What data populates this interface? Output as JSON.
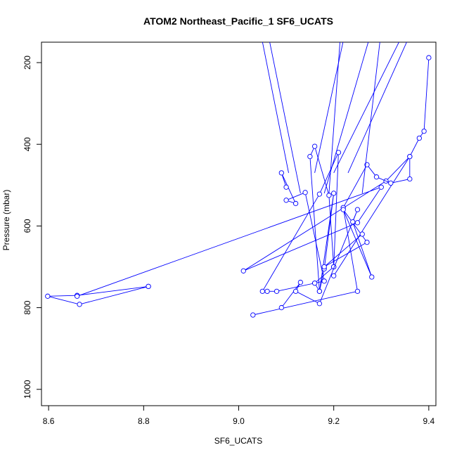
{
  "chart_data": {
    "type": "scatter",
    "title": "ATOM2 Northeast_Pacific_1 SF6_UCATS",
    "xlabel": "SF6_UCATS",
    "ylabel": "Pressure (mbar)",
    "xlim": [
      8.585,
      9.415
    ],
    "ylim": [
      1040,
      150
    ],
    "y_reversed": true,
    "x_ticks": [
      8.6,
      8.8,
      9.0,
      9.2,
      9.4
    ],
    "x_tick_labels": [
      "8.6",
      "8.8",
      "9.0",
      "9.2",
      "9.4"
    ],
    "y_ticks": [
      200,
      400,
      600,
      800,
      1000
    ],
    "y_tick_labels": [
      "200",
      "400",
      "600",
      "800",
      "1000"
    ],
    "grid": false,
    "legend": "none",
    "color": "#0000ff",
    "series": [
      {
        "x": [
          8.81,
          8.66,
          8.598,
          8.665,
          8.81
        ],
        "y": [
          748,
          770,
          772,
          792,
          748
        ]
      },
      {
        "x": [
          8.66,
          9.3,
          9.25,
          9.01,
          9.31,
          9.36,
          9.38,
          9.39,
          9.4
        ],
        "y": [
          772,
          505,
          592,
          710,
          490,
          430,
          385,
          368,
          188
        ]
      },
      {
        "x": [
          9.05,
          9.17,
          9.21,
          9.2,
          9.16,
          9.18,
          9.14,
          9.1,
          9.12,
          9.09,
          9.1
        ],
        "y": [
          760,
          522,
          420,
          700,
          740,
          735,
          518,
          537,
          545,
          470,
          505
        ]
      },
      {
        "x": [
          9.06,
          9.08,
          9.16,
          9.17,
          9.2,
          9.18,
          9.17,
          9.15,
          9.16,
          9.19,
          9.2
        ],
        "y": [
          760,
          760,
          740,
          760,
          520,
          705,
          760,
          430,
          405,
          525,
          700
        ]
      },
      {
        "x": [
          9.03,
          9.25,
          9.22,
          9.27,
          9.29,
          9.32,
          9.36,
          9.36,
          9.2
        ],
        "y": [
          818,
          760,
          555,
          450,
          480,
          495,
          485,
          430,
          722
        ]
      },
      {
        "x": [
          9.09,
          9.13,
          9.12,
          9.17,
          9.25,
          9.24,
          9.28,
          9.22,
          9.27,
          9.18,
          9.26
        ],
        "y": [
          800,
          738,
          760,
          790,
          560,
          590,
          725,
          560,
          640,
          700,
          620
        ]
      }
    ]
  }
}
